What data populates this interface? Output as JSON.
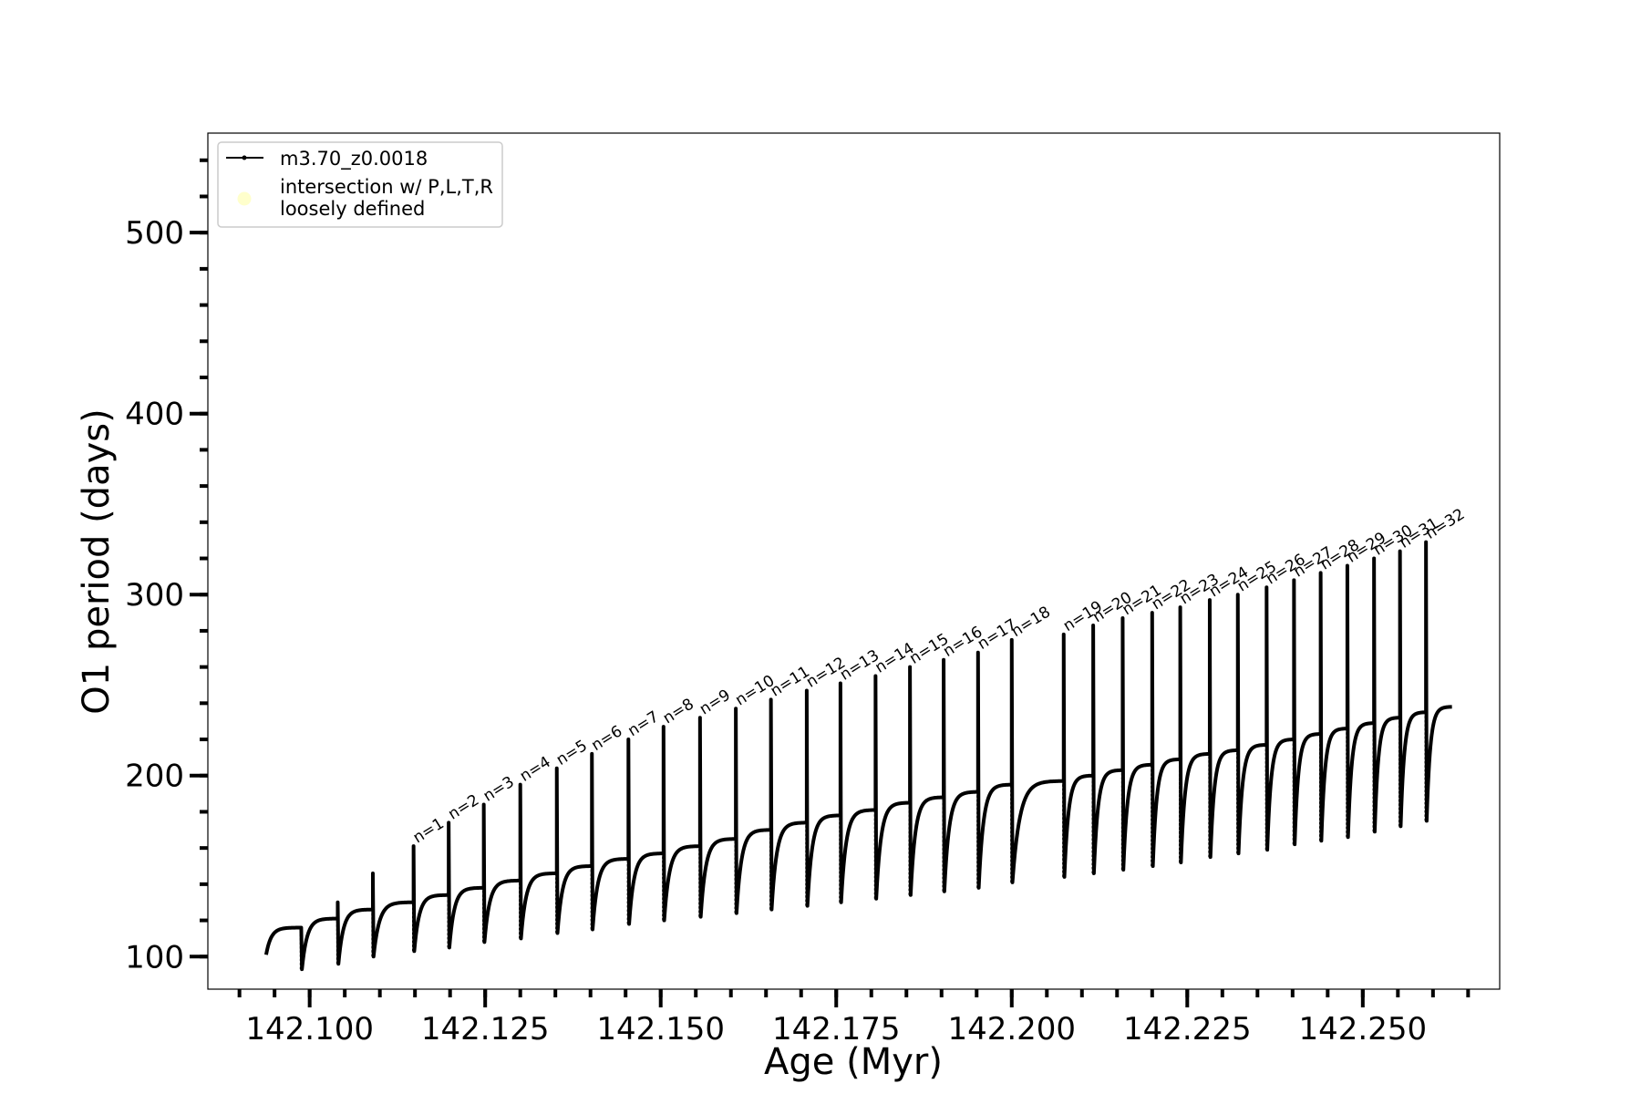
{
  "chart_data": {
    "type": "line",
    "title": "",
    "xlabel": "Age (Myr)",
    "ylabel": "O1 period (days)",
    "xlim": [
      142.0855,
      142.2695
    ],
    "ylim": [
      82,
      555
    ],
    "x_ticks": [
      142.1,
      142.125,
      142.15,
      142.175,
      142.2,
      142.225,
      142.25
    ],
    "x_tick_labels": [
      "142.100",
      "142.125",
      "142.150",
      "142.175",
      "142.200",
      "142.225",
      "142.250"
    ],
    "x_minor_step": 0.005,
    "y_ticks": [
      100,
      200,
      300,
      400,
      500
    ],
    "y_tick_labels": [
      "100",
      "200",
      "300",
      "400",
      "500"
    ],
    "y_minor_step": 20,
    "grid": false,
    "legend_position": "top-left",
    "legend": [
      {
        "label": "m3.70_z0.0018",
        "kind": "line-with-markers",
        "color": "#000000"
      },
      {
        "label": "intersection w/ P,L,T,R",
        "label_line2": "loosely defined",
        "kind": "marker",
        "color": "#ffffcc"
      }
    ],
    "series": [
      {
        "name": "m3.70_z0.0018",
        "color": "#000000",
        "start": {
          "x": 142.0938,
          "y": 101
        },
        "end": {
          "x": 142.2627,
          "y": 238
        },
        "pulses": [
          {
            "n": null,
            "x": 142.0988,
            "peak": 116,
            "min": 93,
            "top": 116
          },
          {
            "n": null,
            "x": 142.104,
            "peak": 130,
            "min": 96,
            "top": 121
          },
          {
            "n": null,
            "x": 142.109,
            "peak": 146,
            "min": 100,
            "top": 126
          },
          {
            "n": 1,
            "x": 142.1148,
            "peak": 161,
            "min": 103,
            "top": 130
          },
          {
            "n": 2,
            "x": 142.1198,
            "peak": 174,
            "min": 105,
            "top": 134
          },
          {
            "n": 3,
            "x": 142.1248,
            "peak": 184,
            "min": 108,
            "top": 138
          },
          {
            "n": 4,
            "x": 142.13,
            "peak": 195,
            "min": 110,
            "top": 142
          },
          {
            "n": 5,
            "x": 142.1352,
            "peak": 204,
            "min": 113,
            "top": 146
          },
          {
            "n": 6,
            "x": 142.1402,
            "peak": 212,
            "min": 115,
            "top": 150
          },
          {
            "n": 7,
            "x": 142.1454,
            "peak": 220,
            "min": 118,
            "top": 154
          },
          {
            "n": 8,
            "x": 142.1504,
            "peak": 227,
            "min": 120,
            "top": 157
          },
          {
            "n": 9,
            "x": 142.1556,
            "peak": 232,
            "min": 122,
            "top": 161
          },
          {
            "n": 10,
            "x": 142.1607,
            "peak": 237,
            "min": 124,
            "top": 165
          },
          {
            "n": 11,
            "x": 142.1657,
            "peak": 242,
            "min": 126,
            "top": 170
          },
          {
            "n": 12,
            "x": 142.1708,
            "peak": 247,
            "min": 128,
            "top": 174
          },
          {
            "n": 13,
            "x": 142.1756,
            "peak": 251,
            "min": 130,
            "top": 178
          },
          {
            "n": 14,
            "x": 142.1806,
            "peak": 255,
            "min": 132,
            "top": 181
          },
          {
            "n": 15,
            "x": 142.1855,
            "peak": 260,
            "min": 134,
            "top": 185
          },
          {
            "n": 16,
            "x": 142.1903,
            "peak": 264,
            "min": 136,
            "top": 188
          },
          {
            "n": 17,
            "x": 142.1952,
            "peak": 268,
            "min": 138,
            "top": 191
          },
          {
            "n": 18,
            "x": 142.2,
            "peak": 275,
            "min": 141,
            "top": 195
          },
          {
            "n": 19,
            "x": 142.2074,
            "peak": 278,
            "min": 144,
            "top": 197
          },
          {
            "n": 20,
            "x": 142.2116,
            "peak": 283,
            "min": 146,
            "top": 200
          },
          {
            "n": 21,
            "x": 142.2158,
            "peak": 287,
            "min": 148,
            "top": 203
          },
          {
            "n": 22,
            "x": 142.22,
            "peak": 290,
            "min": 150,
            "top": 206
          },
          {
            "n": 23,
            "x": 142.224,
            "peak": 293,
            "min": 152,
            "top": 209
          },
          {
            "n": 24,
            "x": 142.2282,
            "peak": 297,
            "min": 155,
            "top": 212
          },
          {
            "n": 25,
            "x": 142.2322,
            "peak": 300,
            "min": 157,
            "top": 214
          },
          {
            "n": 26,
            "x": 142.2363,
            "peak": 304,
            "min": 159,
            "top": 217
          },
          {
            "n": 27,
            "x": 142.2402,
            "peak": 308,
            "min": 162,
            "top": 220
          },
          {
            "n": 28,
            "x": 142.244,
            "peak": 312,
            "min": 164,
            "top": 223
          },
          {
            "n": 29,
            "x": 142.2478,
            "peak": 316,
            "min": 166,
            "top": 226
          },
          {
            "n": 30,
            "x": 142.2516,
            "peak": 320,
            "min": 169,
            "top": 229
          },
          {
            "n": 31,
            "x": 142.2553,
            "peak": 324,
            "min": 172,
            "top": 232
          },
          {
            "n": 32,
            "x": 142.259,
            "peak": 329,
            "min": 175,
            "top": 235
          }
        ]
      }
    ],
    "annotations_prefix": "n="
  }
}
